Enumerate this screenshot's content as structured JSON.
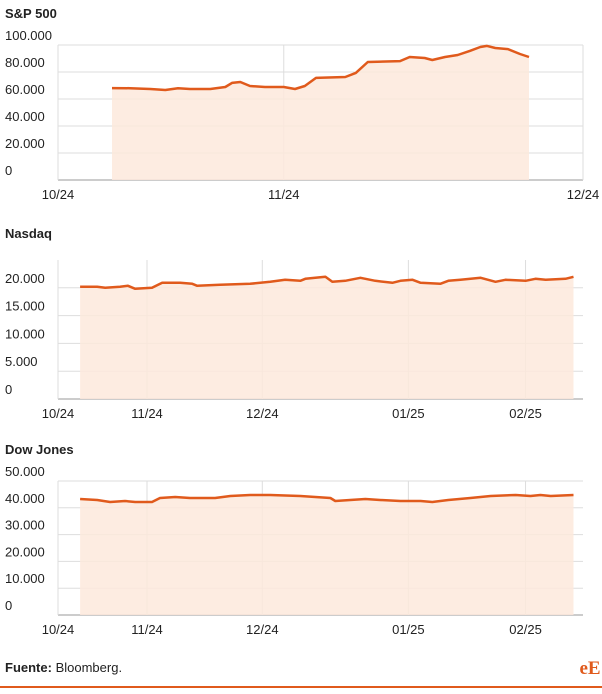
{
  "chart_data": [
    {
      "type": "line",
      "title": "S&P 500",
      "color": "#e05a1c",
      "fill": "#fde9dc",
      "grid": true,
      "x": [
        7.2,
        9.6,
        12.3,
        14.3,
        16,
        17.6,
        20.3,
        22.3,
        23.2,
        24.3,
        25.6,
        27.6,
        30.1,
        31.6,
        32.9,
        34.4,
        38.3,
        39.7,
        41.3,
        45.6,
        46.9,
        48.9,
        49.9,
        51.6,
        53.3,
        54.9,
        56.3,
        57.2,
        58.3,
        60,
        61.6,
        62.8
      ],
      "values": [
        68100,
        68000,
        67400,
        66700,
        68000,
        67400,
        67400,
        68900,
        71900,
        72600,
        69600,
        68900,
        68900,
        67400,
        69600,
        75600,
        76300,
        79300,
        87400,
        88100,
        91100,
        90400,
        88900,
        91100,
        92600,
        95600,
        98500,
        99300,
        97800,
        97000,
        93300,
        91100
      ],
      "xlim": [
        0,
        70
      ],
      "xticks": [
        {
          "value": 0,
          "label": "10/24"
        },
        {
          "value": 30.1,
          "label": "11/24"
        },
        {
          "value": 70,
          "label": "12/24"
        }
      ],
      "ylim": [
        0,
        100000
      ],
      "yticks": [
        0,
        {
          "value": 20000,
          "label": "20.000"
        },
        {
          "value": 40000,
          "label": "40.000"
        },
        {
          "value": 60000,
          "label": "60.000"
        },
        {
          "value": 80000,
          "label": "80.000"
        },
        {
          "value": 100000,
          "label": "100.000"
        }
      ]
    },
    {
      "type": "line",
      "title": "Nasdaq",
      "color": "#e05a1c",
      "fill": "#fde9dc",
      "grid": true,
      "x": [
        5.8,
        10.3,
        12.4,
        16.3,
        18.4,
        20.3,
        24.7,
        27.4,
        32.1,
        35.3,
        36.6,
        42.6,
        50.5,
        55.8,
        59.7,
        63.7,
        65,
        70.3,
        72.1,
        75.5,
        79.5,
        83.4,
        87.9,
        90,
        93.2,
        95.3,
        100.5,
        102.6,
        105.8,
        111.1,
        115,
        117.6,
        122.9,
        125.5,
        128.2,
        133.4,
        135.5
      ],
      "values": [
        20180,
        20180,
        20000,
        20180,
        20360,
        19820,
        20000,
        20900,
        20900,
        20720,
        20360,
        20540,
        20720,
        21080,
        21440,
        21260,
        21620,
        21980,
        21080,
        21260,
        21800,
        21260,
        20900,
        21260,
        21440,
        20900,
        20720,
        21260,
        21440,
        21800,
        21080,
        21440,
        21260,
        21620,
        21440,
        21620,
        21980
      ],
      "xlim": [
        0,
        138
      ],
      "xticks": [
        {
          "value": 0,
          "label": "10/24"
        },
        {
          "value": 23.4,
          "label": "11/24"
        },
        {
          "value": 53.7,
          "label": "12/24"
        },
        {
          "value": 92.1,
          "label": "01/25"
        },
        {
          "value": 122.9,
          "label": "02/25"
        }
      ],
      "ylim": [
        0,
        25000
      ],
      "yticks": [
        0,
        {
          "value": 5000,
          "label": "5.000"
        },
        {
          "value": 10000,
          "label": "10.000"
        },
        {
          "value": 15000,
          "label": "15.000"
        },
        {
          "value": 20000,
          "label": "20.000"
        }
      ]
    },
    {
      "type": "line",
      "title": "Dow Jones",
      "color": "#e05a1c",
      "fill": "#fde9dc",
      "grid": true,
      "x": [
        5.8,
        10.3,
        13.7,
        17.6,
        20.3,
        24.7,
        26.8,
        30.8,
        34.7,
        41.3,
        45.3,
        50.5,
        55.8,
        63.7,
        71.6,
        72.9,
        76.8,
        80.8,
        84.7,
        90,
        95.3,
        98.4,
        102.6,
        108.4,
        113.7,
        120.3,
        124.2,
        126.8,
        129.5,
        135.5
      ],
      "values": [
        43280,
        42910,
        42160,
        42540,
        42160,
        42160,
        43660,
        44030,
        43660,
        43660,
        44400,
        44780,
        44780,
        44400,
        43660,
        42540,
        42910,
        43280,
        42910,
        42540,
        42540,
        42160,
        42910,
        43660,
        44400,
        44780,
        44400,
        44780,
        44400,
        44780
      ],
      "xlim": [
        0,
        138
      ],
      "xticks": [
        {
          "value": 0,
          "label": "10/24"
        },
        {
          "value": 23.4,
          "label": "11/24"
        },
        {
          "value": 53.7,
          "label": "12/24"
        },
        {
          "value": 92.1,
          "label": "01/25"
        },
        {
          "value": 122.9,
          "label": "02/25"
        }
      ],
      "ylim": [
        0,
        50000
      ],
      "yticks": [
        0,
        {
          "value": 10000,
          "label": "10.000"
        },
        {
          "value": 20000,
          "label": "20.000"
        },
        {
          "value": 30000,
          "label": "30.000"
        },
        {
          "value": 40000,
          "label": "40.000"
        },
        {
          "value": 50000,
          "label": "50.000"
        }
      ]
    }
  ],
  "footer": {
    "source_label": "Fuente:",
    "source": "Bloomberg.",
    "logo": "eE"
  }
}
